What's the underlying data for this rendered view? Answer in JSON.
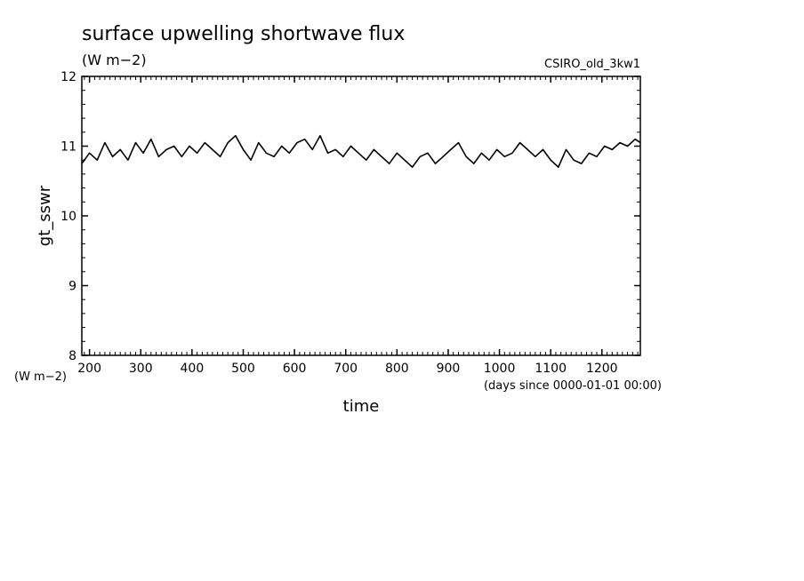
{
  "chart_data": {
    "type": "line",
    "title": "surface upwelling shortwave flux",
    "subtitle": "(W m−2)",
    "dataset": "CSIRO_old_3kw1",
    "xlabel": "time",
    "x_units": "(days since 0000-01-01 00:00)",
    "ylabel": "gt_sswr",
    "y_units": "(W m−2)",
    "xlim": [
      185,
      1275
    ],
    "ylim": [
      8,
      12
    ],
    "x_ticks": [
      200,
      300,
      400,
      500,
      600,
      700,
      800,
      900,
      1000,
      1100,
      1200
    ],
    "y_ticks": [
      8,
      9,
      10,
      11,
      12
    ],
    "grid": false,
    "series": [
      {
        "color": "#000000",
        "x": [
          185,
          200,
          215,
          230,
          245,
          260,
          275,
          290,
          305,
          320,
          335,
          350,
          365,
          380,
          395,
          410,
          425,
          440,
          455,
          470,
          485,
          500,
          515,
          530,
          545,
          560,
          575,
          590,
          605,
          620,
          635,
          650,
          665,
          680,
          695,
          710,
          725,
          740,
          755,
          770,
          785,
          800,
          815,
          830,
          845,
          860,
          875,
          890,
          905,
          920,
          935,
          950,
          965,
          980,
          995,
          1010,
          1025,
          1040,
          1055,
          1070,
          1085,
          1100,
          1115,
          1130,
          1145,
          1160,
          1175,
          1190,
          1205,
          1220,
          1235,
          1250,
          1265,
          1275
        ],
        "y": [
          10.75,
          10.9,
          10.8,
          11.05,
          10.85,
          10.95,
          10.8,
          11.05,
          10.9,
          11.1,
          10.85,
          10.95,
          11.0,
          10.85,
          11.0,
          10.9,
          11.05,
          10.95,
          10.85,
          11.05,
          11.15,
          10.95,
          10.8,
          11.05,
          10.9,
          10.85,
          11.0,
          10.9,
          11.05,
          11.1,
          10.95,
          11.15,
          10.9,
          10.95,
          10.85,
          11.0,
          10.9,
          10.8,
          10.95,
          10.85,
          10.75,
          10.9,
          10.8,
          10.7,
          10.85,
          10.9,
          10.75,
          10.85,
          10.95,
          11.05,
          10.85,
          10.75,
          10.9,
          10.8,
          10.95,
          10.85,
          10.9,
          11.05,
          10.95,
          10.85,
          10.95,
          10.8,
          10.7,
          10.95,
          10.8,
          10.75,
          10.9,
          10.85,
          11.0,
          10.95,
          11.05,
          11.0,
          11.1,
          11.05
        ]
      }
    ]
  }
}
